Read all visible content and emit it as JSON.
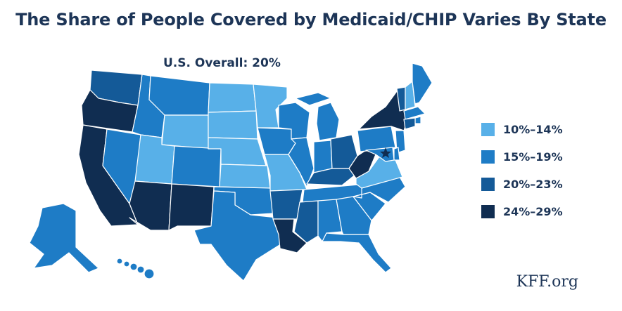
{
  "title": "The Share of People Covered by Medicaid/CHIP Varies By State",
  "overall_label": "U.S. Overall: 20%",
  "source": "KFF.org",
  "colors": {
    "bin1": "#58b0e8",
    "bin2": "#1e7cc6",
    "bin3": "#145a98",
    "bin4": "#102d51",
    "text": "#1d3557"
  },
  "legend": [
    {
      "label": "10%–14%",
      "bin": "bin1"
    },
    {
      "label": "15%–19%",
      "bin": "bin2"
    },
    {
      "label": "20%–23%",
      "bin": "bin3"
    },
    {
      "label": "24%–29%",
      "bin": "bin4"
    }
  ],
  "states": {
    "WA": "bin3",
    "OR": "bin4",
    "CA": "bin4",
    "NV": "bin2",
    "ID": "bin2",
    "MT": "bin2",
    "WY": "bin1",
    "UT": "bin1",
    "AZ": "bin4",
    "CO": "bin2",
    "NM": "bin4",
    "ND": "bin1",
    "SD": "bin1",
    "NE": "bin1",
    "KS": "bin1",
    "OK": "bin2",
    "TX": "bin2",
    "MN": "bin1",
    "IA": "bin2",
    "MO": "bin1",
    "AR": "bin3",
    "LA": "bin4",
    "WI": "bin2",
    "IL": "bin2",
    "MI": "bin2",
    "IN": "bin2",
    "OH": "bin3",
    "KY": "bin3",
    "TN": "bin2",
    "MS": "bin3",
    "AL": "bin2",
    "GA": "bin2",
    "FL": "bin2",
    "SC": "bin2",
    "NC": "bin2",
    "VA": "bin1",
    "WV": "bin4",
    "PA": "bin2",
    "NY": "bin4",
    "VT": "bin3",
    "NH": "bin1",
    "ME": "bin2",
    "MA": "bin2",
    "RI": "bin2",
    "CT": "bin3",
    "NJ": "bin2",
    "DE": "bin2",
    "MD": "bin2",
    "DC": "bin4",
    "AK": "bin2",
    "HI": "bin2"
  }
}
